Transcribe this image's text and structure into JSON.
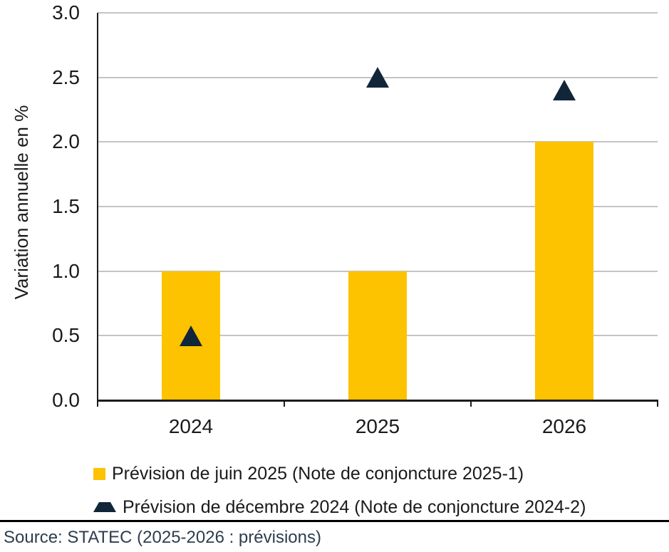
{
  "chart_data": {
    "type": "bar",
    "title": "",
    "xlabel": "",
    "ylabel": "Variation annuelle en %",
    "categories": [
      "2024",
      "2025",
      "2026"
    ],
    "series": [
      {
        "name": "Prévision de juin 2025 (Note de conjoncture 2025-1)",
        "marker": "bar",
        "color": "#fdc300",
        "values": [
          1.0,
          1.0,
          2.0
        ]
      },
      {
        "name": "Prévision de décembre 2024 (Note de conjoncture 2024-2)",
        "marker": "triangle",
        "color": "#12263a",
        "values": [
          0.5,
          2.5,
          2.4
        ]
      }
    ],
    "ylim": [
      0,
      3
    ],
    "yticks": [
      0,
      0.5,
      1,
      1.5,
      2,
      2.5,
      3
    ],
    "ytick_labels": [
      "0.0",
      "0.5",
      "1.0",
      "1.5",
      "2.0",
      "2.5",
      "3.0"
    ],
    "grid": "horizontal",
    "gridline_color": "#c4c4c4",
    "axis_color": "#1c1c1c",
    "legend_position": "bottom-left"
  },
  "footer": {
    "source_text": "Source: STATEC (2025-2026 : prévisions)"
  }
}
